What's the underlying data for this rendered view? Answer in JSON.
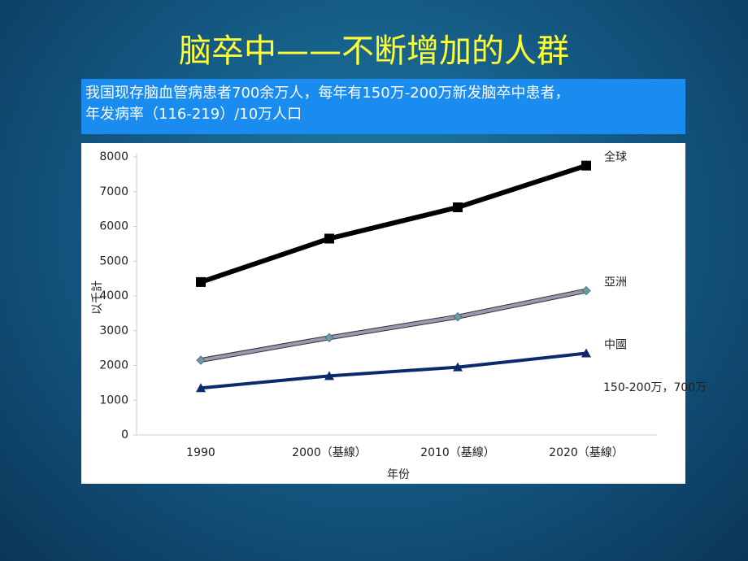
{
  "slide_title": "脑卒中——不断增加的人群",
  "banner": {
    "lines": [
      "我国现存脑血管病患者700余万人，每年有150万-200万新发脑卒中患者，",
      "年发病率（116-219）/10万人口"
    ]
  },
  "chart_data": {
    "type": "line",
    "categories": [
      "1990",
      "2000（基線）",
      "2010（基線）",
      "2020（基線）"
    ],
    "x_label": "年份",
    "y_label": "以千計",
    "ylim": [
      0,
      8000
    ],
    "yticks": [
      0,
      1000,
      2000,
      3000,
      4000,
      5000,
      6000,
      7000,
      8000
    ],
    "series": [
      {
        "name": "全球",
        "color": "#000000",
        "marker": "square",
        "values": [
          4400,
          5650,
          6550,
          7750
        ]
      },
      {
        "name": "亞洲",
        "color": "#9a98b0",
        "marker": "diamond",
        "values": [
          2150,
          2800,
          3400,
          4150
        ]
      },
      {
        "name": "中國",
        "color": "#0b2a6e",
        "marker": "triangle",
        "values": [
          1350,
          1700,
          1950,
          2350
        ]
      }
    ],
    "annotation": "150-200万，700万"
  }
}
